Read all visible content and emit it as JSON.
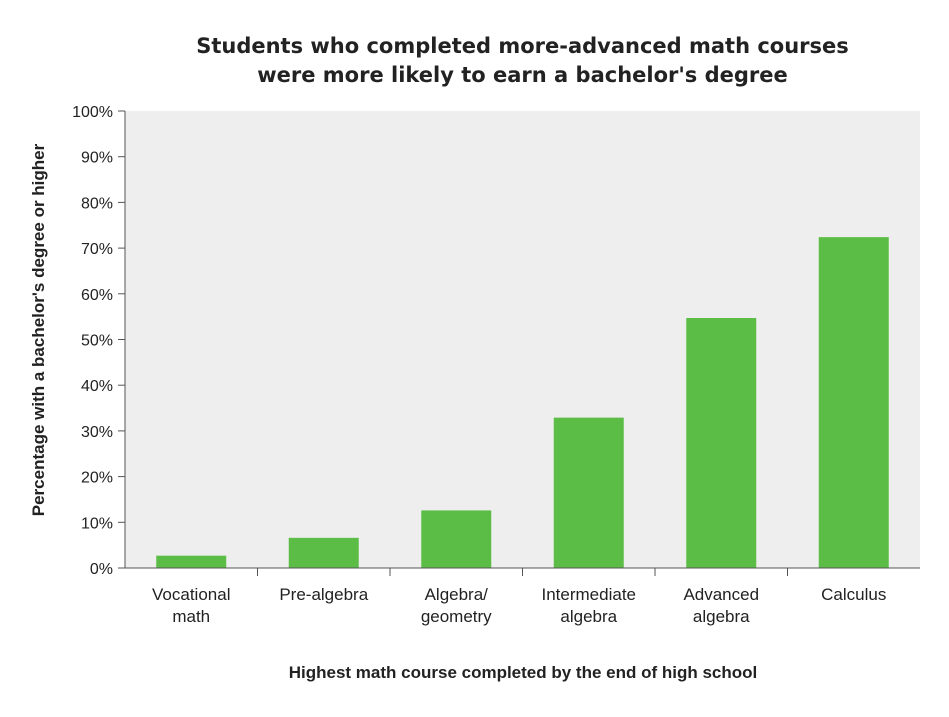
{
  "chart_data": {
    "type": "bar",
    "title_lines": [
      "Students who completed more-advanced math courses",
      "were more likely to earn a bachelor's degree"
    ],
    "xlabel": "Highest math course completed by the end of high school",
    "ylabel": "Percentage with a bachelor's degree or higher",
    "categories": [
      [
        "Vocational",
        "math"
      ],
      [
        "Pre-algebra"
      ],
      [
        "Algebra/",
        "geometry"
      ],
      [
        "Intermediate",
        "algebra"
      ],
      [
        "Advanced",
        "algebra"
      ],
      [
        "Calculus"
      ]
    ],
    "values": [
      2.7,
      6.6,
      12.6,
      32.9,
      54.7,
      72.4
    ],
    "ylim": [
      0,
      100
    ],
    "yticks": [
      0,
      10,
      20,
      30,
      40,
      50,
      60,
      70,
      80,
      90,
      100
    ],
    "ytick_suffix": "%",
    "grid": false,
    "bar_color": "#5cbd46",
    "plot_background": "#eeeeee"
  }
}
